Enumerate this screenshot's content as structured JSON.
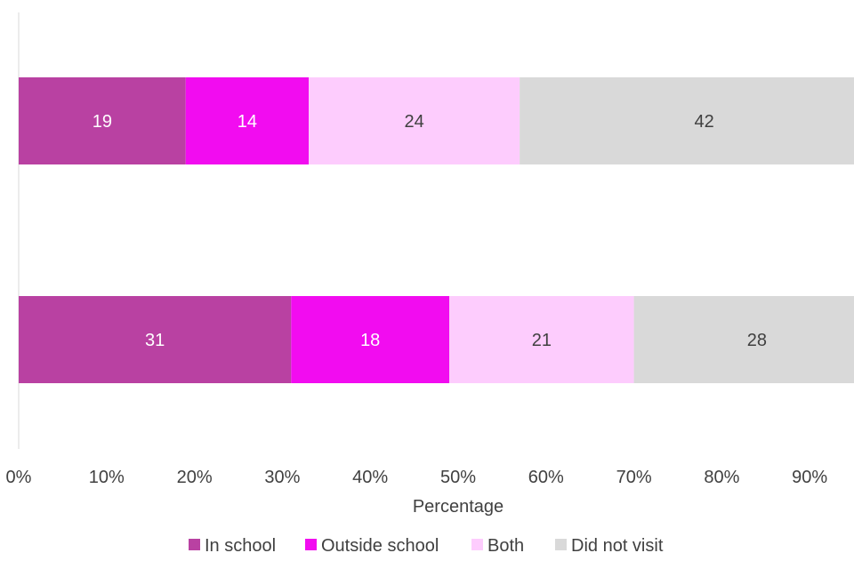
{
  "chart_data": {
    "type": "bar",
    "orientation": "horizontal",
    "stacked": true,
    "title": "",
    "xlabel": "Percentage",
    "ylabel": "",
    "xlim": [
      0,
      95
    ],
    "x_ticks": [
      "0%",
      "10%",
      "20%",
      "30%",
      "40%",
      "50%",
      "60%",
      "70%",
      "80%",
      "90%"
    ],
    "x_tick_values": [
      0,
      10,
      20,
      30,
      40,
      50,
      60,
      70,
      80,
      90
    ],
    "categories": [
      "",
      ""
    ],
    "series": [
      {
        "name": "In school",
        "color": "#b941a2",
        "label_color": "#ffffff",
        "values": [
          19,
          31
        ]
      },
      {
        "name": "Outside school",
        "color": "#f20cf0",
        "label_color": "#ffffff",
        "values": [
          14,
          18
        ]
      },
      {
        "name": "Both",
        "color": "#fdccfd",
        "label_color": "#404040",
        "values": [
          24,
          21
        ]
      },
      {
        "name": "Did not visit",
        "color": "#d9d9d9",
        "label_color": "#404040",
        "values": [
          42,
          28
        ]
      }
    ],
    "legend_position": "bottom",
    "grid": false
  }
}
